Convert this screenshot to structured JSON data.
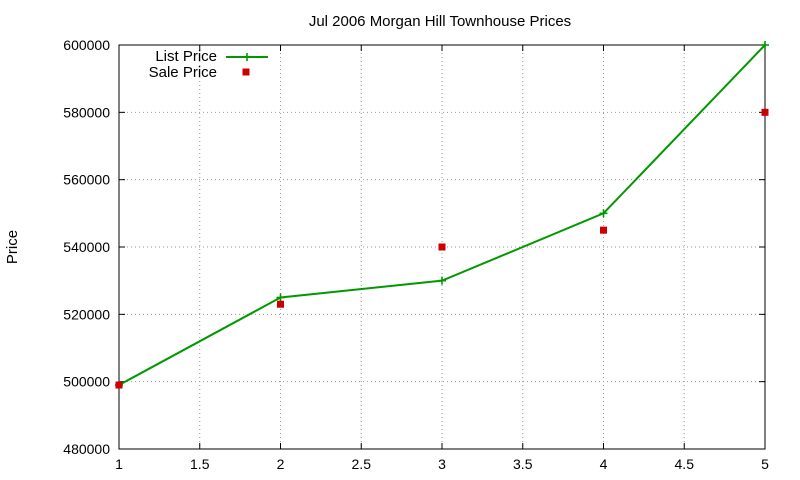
{
  "chart_data": {
    "type": "line",
    "title": "Jul 2006 Morgan Hill Townhouse Prices",
    "xlabel": "",
    "ylabel": "Price",
    "xlim": [
      1,
      5
    ],
    "ylim": [
      480000,
      600000
    ],
    "x_ticks": [
      "1",
      "1.5",
      "2",
      "2.5",
      "3",
      "3.5",
      "4",
      "4.5",
      "5"
    ],
    "y_ticks": [
      "480000",
      "500000",
      "520000",
      "540000",
      "560000",
      "580000",
      "600000"
    ],
    "grid": true,
    "legend_position": "top-left",
    "series": [
      {
        "name": "List Price",
        "kind": "linespoints",
        "color": "#009900",
        "marker": "plus",
        "x": [
          1,
          2,
          3,
          4,
          5
        ],
        "y": [
          499000,
          525000,
          530000,
          550000,
          600000
        ]
      },
      {
        "name": "Sale Price",
        "kind": "points",
        "color": "#cc0000",
        "marker": "square",
        "x": [
          1,
          2,
          3,
          4,
          5
        ],
        "y": [
          499000,
          523000,
          540000,
          545000,
          580000
        ]
      }
    ]
  }
}
